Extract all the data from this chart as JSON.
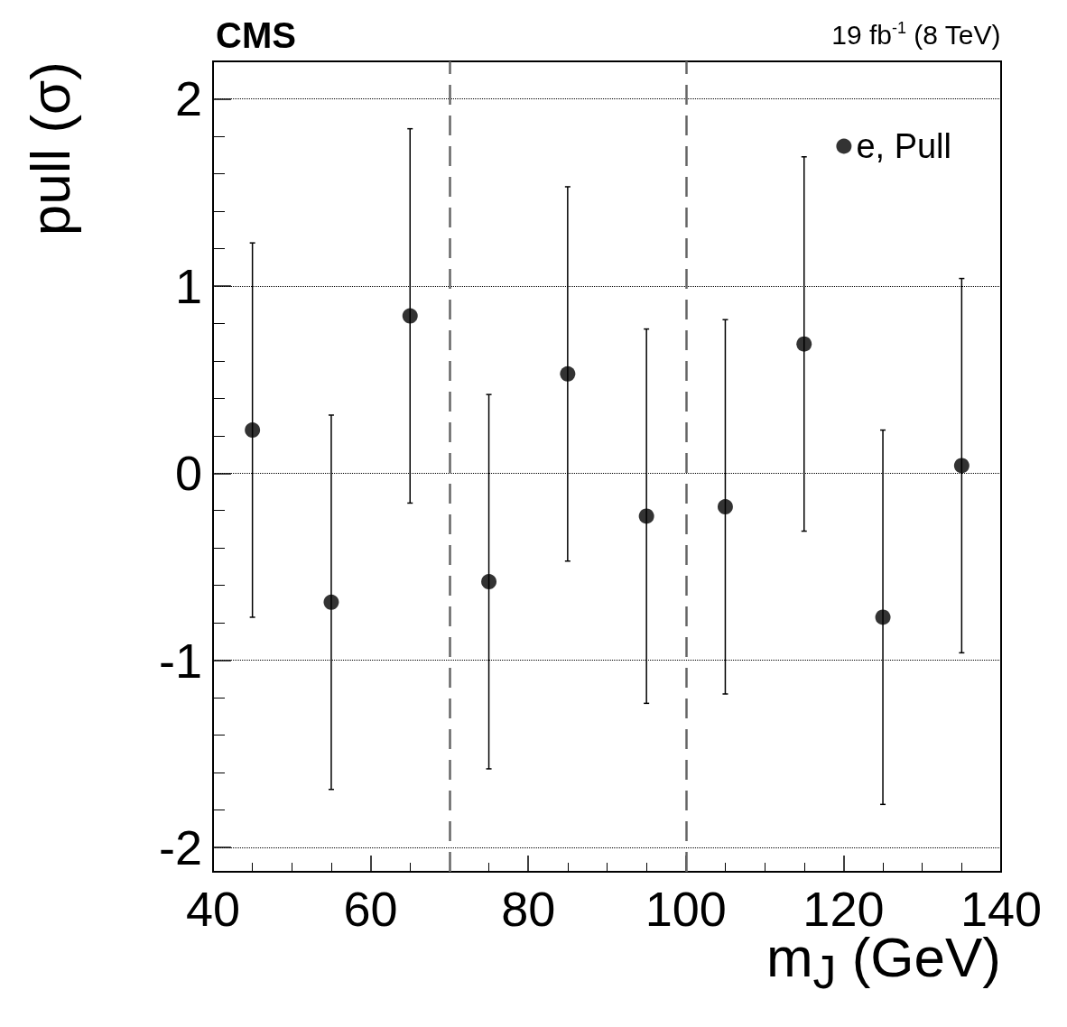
{
  "chart_data": {
    "type": "scatter",
    "title": "CMS",
    "annotations": [
      "19 fb$^{-1}$ (8 TeV)"
    ],
    "xlabel": "m$_{J}$ (GeV)",
    "ylabel": "pull (σ)",
    "x": [
      45,
      55,
      65,
      75,
      85,
      95,
      105,
      115,
      125,
      135
    ],
    "series": [
      {
        "name": "e, Pull",
        "color": "#000000",
        "values": [
          0.23,
          -0.69,
          0.84,
          -0.58,
          0.53,
          -0.23,
          -0.18,
          0.69,
          -0.77,
          0.04
        ],
        "errors": [
          1,
          1,
          1,
          1,
          1,
          1,
          1,
          1,
          1,
          1
        ]
      }
    ],
    "xlim": [
      40,
      140
    ],
    "xticks": [
      40,
      60,
      80,
      100,
      120,
      140
    ],
    "ylim": [
      -2.13,
      2.2
    ],
    "yticks": [
      -2,
      -1,
      0,
      1,
      2
    ],
    "ref_lines": [
      {
        "axis": "x",
        "value": 70,
        "color": "#666666",
        "line_style": "dashed"
      },
      {
        "axis": "x",
        "value": 100,
        "color": "#666666",
        "line_style": "dashed"
      }
    ],
    "grid": "y",
    "legend": "top right",
    "marker": "circle"
  }
}
